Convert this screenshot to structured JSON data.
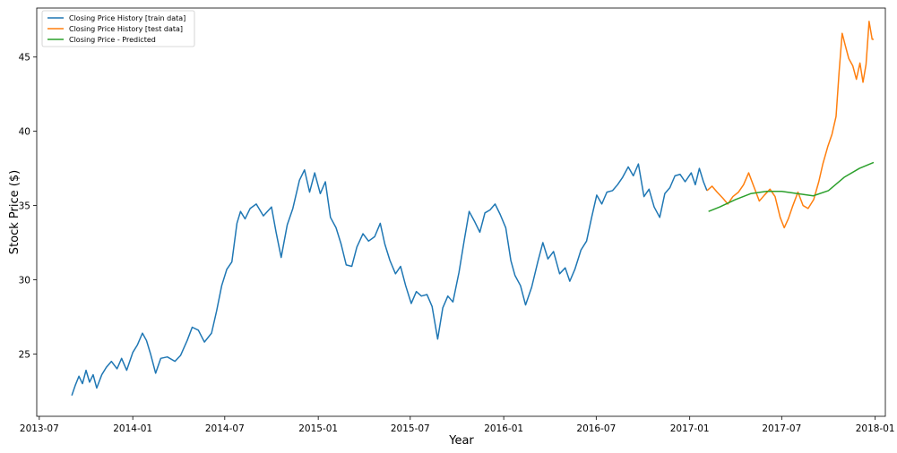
{
  "chart_data": {
    "type": "line",
    "title": "",
    "xlabel": "Year",
    "ylabel": "Stock Price ($)",
    "xlim": [
      "2013-06-26",
      "2018-01-21"
    ],
    "ylim": [
      20.8,
      48.3
    ],
    "grid": false,
    "legend_position": "top-left",
    "x_ticks": [
      "2013-07",
      "2014-01",
      "2014-07",
      "2015-01",
      "2015-07",
      "2016-01",
      "2016-07",
      "2017-01",
      "2017-07",
      "2018-01"
    ],
    "y_ticks": [
      25,
      30,
      35,
      40,
      45
    ],
    "series": [
      {
        "name": "Closing Price History [train data]",
        "color": "#1f77b4",
        "points": [
          [
            "2013-09-03",
            22.2
          ],
          [
            "2013-09-10",
            22.9
          ],
          [
            "2013-09-17",
            23.5
          ],
          [
            "2013-09-24",
            23.0
          ],
          [
            "2013-10-01",
            23.9
          ],
          [
            "2013-10-08",
            23.1
          ],
          [
            "2013-10-15",
            23.6
          ],
          [
            "2013-10-22",
            22.7
          ],
          [
            "2013-11-01",
            23.6
          ],
          [
            "2013-11-10",
            24.1
          ],
          [
            "2013-11-20",
            24.5
          ],
          [
            "2013-12-01",
            24.0
          ],
          [
            "2013-12-10",
            24.7
          ],
          [
            "2013-12-20",
            23.9
          ],
          [
            "2014-01-01",
            25.1
          ],
          [
            "2014-01-10",
            25.6
          ],
          [
            "2014-01-20",
            26.4
          ],
          [
            "2014-01-28",
            25.9
          ],
          [
            "2014-02-05",
            25.0
          ],
          [
            "2014-02-15",
            23.7
          ],
          [
            "2014-02-25",
            24.7
          ],
          [
            "2014-03-10",
            24.8
          ],
          [
            "2014-03-25",
            24.5
          ],
          [
            "2014-04-05",
            24.9
          ],
          [
            "2014-04-18",
            25.9
          ],
          [
            "2014-04-28",
            26.8
          ],
          [
            "2014-05-10",
            26.6
          ],
          [
            "2014-05-22",
            25.8
          ],
          [
            "2014-06-05",
            26.4
          ],
          [
            "2014-06-15",
            27.9
          ],
          [
            "2014-06-25",
            29.6
          ],
          [
            "2014-07-05",
            30.7
          ],
          [
            "2014-07-15",
            31.2
          ],
          [
            "2014-07-25",
            33.8
          ],
          [
            "2014-08-01",
            34.6
          ],
          [
            "2014-08-10",
            34.1
          ],
          [
            "2014-08-20",
            34.8
          ],
          [
            "2014-09-01",
            35.1
          ],
          [
            "2014-09-15",
            34.3
          ],
          [
            "2014-10-01",
            34.9
          ],
          [
            "2014-10-10",
            33.2
          ],
          [
            "2014-10-20",
            31.5
          ],
          [
            "2014-11-01",
            33.7
          ],
          [
            "2014-11-12",
            34.8
          ],
          [
            "2014-11-25",
            36.7
          ],
          [
            "2014-12-05",
            37.4
          ],
          [
            "2014-12-15",
            35.9
          ],
          [
            "2014-12-25",
            37.2
          ],
          [
            "2015-01-05",
            35.8
          ],
          [
            "2015-01-15",
            36.6
          ],
          [
            "2015-01-25",
            34.2
          ],
          [
            "2015-02-05",
            33.5
          ],
          [
            "2015-02-15",
            32.4
          ],
          [
            "2015-02-25",
            31.0
          ],
          [
            "2015-03-08",
            30.9
          ],
          [
            "2015-03-18",
            32.2
          ],
          [
            "2015-03-30",
            33.1
          ],
          [
            "2015-04-10",
            32.6
          ],
          [
            "2015-04-22",
            32.9
          ],
          [
            "2015-05-03",
            33.8
          ],
          [
            "2015-05-12",
            32.4
          ],
          [
            "2015-05-22",
            31.3
          ],
          [
            "2015-06-02",
            30.4
          ],
          [
            "2015-06-12",
            30.9
          ],
          [
            "2015-06-22",
            29.6
          ],
          [
            "2015-07-03",
            28.4
          ],
          [
            "2015-07-13",
            29.2
          ],
          [
            "2015-07-23",
            28.9
          ],
          [
            "2015-08-03",
            29.0
          ],
          [
            "2015-08-13",
            28.2
          ],
          [
            "2015-08-24",
            26.0
          ],
          [
            "2015-09-03",
            28.1
          ],
          [
            "2015-09-13",
            28.9
          ],
          [
            "2015-09-23",
            28.5
          ],
          [
            "2015-10-05",
            30.5
          ],
          [
            "2015-10-15",
            32.6
          ],
          [
            "2015-10-25",
            34.6
          ],
          [
            "2015-11-05",
            33.9
          ],
          [
            "2015-11-15",
            33.2
          ],
          [
            "2015-11-25",
            34.5
          ],
          [
            "2015-12-05",
            34.7
          ],
          [
            "2015-12-15",
            35.1
          ],
          [
            "2015-12-25",
            34.4
          ],
          [
            "2016-01-05",
            33.5
          ],
          [
            "2016-01-15",
            31.3
          ],
          [
            "2016-01-23",
            30.3
          ],
          [
            "2016-02-03",
            29.6
          ],
          [
            "2016-02-13",
            28.3
          ],
          [
            "2016-02-25",
            29.5
          ],
          [
            "2016-03-08",
            31.2
          ],
          [
            "2016-03-18",
            32.5
          ],
          [
            "2016-03-28",
            31.4
          ],
          [
            "2016-04-08",
            31.9
          ],
          [
            "2016-04-20",
            30.4
          ],
          [
            "2016-05-01",
            30.8
          ],
          [
            "2016-05-10",
            29.9
          ],
          [
            "2016-05-20",
            30.7
          ],
          [
            "2016-06-01",
            32.0
          ],
          [
            "2016-06-12",
            32.6
          ],
          [
            "2016-06-22",
            34.2
          ],
          [
            "2016-07-02",
            35.7
          ],
          [
            "2016-07-12",
            35.1
          ],
          [
            "2016-07-22",
            35.9
          ],
          [
            "2016-08-02",
            36.0
          ],
          [
            "2016-08-12",
            36.4
          ],
          [
            "2016-08-22",
            36.9
          ],
          [
            "2016-09-02",
            37.6
          ],
          [
            "2016-09-12",
            37.0
          ],
          [
            "2016-09-22",
            37.8
          ],
          [
            "2016-10-03",
            35.6
          ],
          [
            "2016-10-13",
            36.1
          ],
          [
            "2016-10-23",
            34.9
          ],
          [
            "2016-11-03",
            34.2
          ],
          [
            "2016-11-13",
            35.8
          ],
          [
            "2016-11-23",
            36.2
          ],
          [
            "2016-12-03",
            37.0
          ],
          [
            "2016-12-13",
            37.1
          ],
          [
            "2016-12-23",
            36.6
          ],
          [
            "2017-01-04",
            37.2
          ],
          [
            "2017-01-12",
            36.4
          ],
          [
            "2017-01-20",
            37.5
          ],
          [
            "2017-01-28",
            36.6
          ],
          [
            "2017-02-04",
            36.0
          ]
        ]
      },
      {
        "name": "Closing Price History [test data]",
        "color": "#ff7f0e",
        "points": [
          [
            "2017-02-04",
            36.0
          ],
          [
            "2017-02-14",
            36.3
          ],
          [
            "2017-02-24",
            35.9
          ],
          [
            "2017-03-07",
            35.5
          ],
          [
            "2017-03-17",
            35.1
          ],
          [
            "2017-03-27",
            35.6
          ],
          [
            "2017-04-07",
            35.9
          ],
          [
            "2017-04-17",
            36.4
          ],
          [
            "2017-04-27",
            37.2
          ],
          [
            "2017-05-08",
            36.2
          ],
          [
            "2017-05-18",
            35.3
          ],
          [
            "2017-05-28",
            35.7
          ],
          [
            "2017-06-08",
            36.1
          ],
          [
            "2017-06-18",
            35.6
          ],
          [
            "2017-06-28",
            34.2
          ],
          [
            "2017-07-06",
            33.5
          ],
          [
            "2017-07-14",
            34.1
          ],
          [
            "2017-07-22",
            34.9
          ],
          [
            "2017-08-02",
            35.9
          ],
          [
            "2017-08-12",
            35.0
          ],
          [
            "2017-08-22",
            34.8
          ],
          [
            "2017-09-02",
            35.4
          ],
          [
            "2017-09-12",
            36.6
          ],
          [
            "2017-09-20",
            37.8
          ],
          [
            "2017-09-30",
            39.0
          ],
          [
            "2017-10-08",
            39.8
          ],
          [
            "2017-10-16",
            41.0
          ],
          [
            "2017-10-22",
            44.0
          ],
          [
            "2017-10-28",
            46.6
          ],
          [
            "2017-11-03",
            45.8
          ],
          [
            "2017-11-10",
            44.9
          ],
          [
            "2017-11-18",
            44.4
          ],
          [
            "2017-11-25",
            43.5
          ],
          [
            "2017-12-02",
            44.6
          ],
          [
            "2017-12-08",
            43.3
          ],
          [
            "2017-12-14",
            44.5
          ],
          [
            "2017-12-20",
            47.4
          ],
          [
            "2017-12-26",
            46.2
          ],
          [
            "2017-12-29",
            46.2
          ]
        ]
      },
      {
        "name": "Closing Price - Predicted",
        "color": "#2ca02c",
        "points": [
          [
            "2017-02-07",
            34.6
          ],
          [
            "2017-03-01",
            34.9
          ],
          [
            "2017-04-01",
            35.4
          ],
          [
            "2017-05-01",
            35.8
          ],
          [
            "2017-06-01",
            35.95
          ],
          [
            "2017-07-01",
            35.95
          ],
          [
            "2017-08-01",
            35.8
          ],
          [
            "2017-09-01",
            35.65
          ],
          [
            "2017-10-01",
            36.0
          ],
          [
            "2017-11-01",
            36.9
          ],
          [
            "2017-12-01",
            37.5
          ],
          [
            "2017-12-29",
            37.9
          ]
        ]
      }
    ]
  }
}
